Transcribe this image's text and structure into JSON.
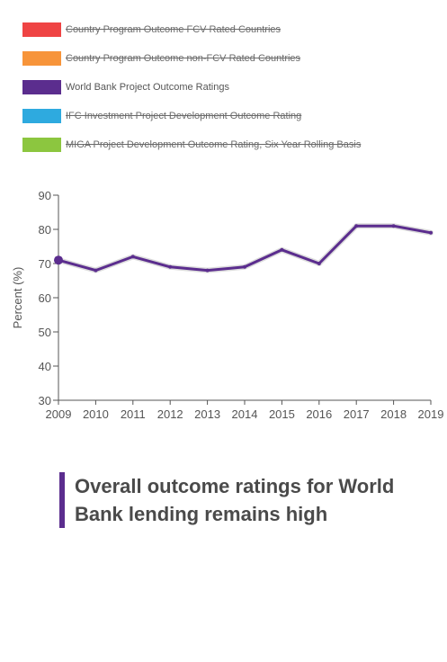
{
  "legend": {
    "items": [
      {
        "label": "Country Program Outcome FCV Rated Countries",
        "color": "#ef4444",
        "active": false
      },
      {
        "label": "Country Program Outcome non-FCV Rated Countries",
        "color": "#f7943a",
        "active": false
      },
      {
        "label": "World Bank Project Outcome Ratings",
        "color": "#5b2d8e",
        "active": true
      },
      {
        "label": "IFC Investment Project Development Outcome Rating",
        "color": "#2eaadf",
        "active": false
      },
      {
        "label": "MIGA Project Development Outcome Rating, Six Year Rolling Basis",
        "color": "#8cc63f",
        "active": false
      }
    ]
  },
  "chart_data": {
    "type": "line",
    "x": [
      2009,
      2010,
      2011,
      2012,
      2013,
      2014,
      2015,
      2016,
      2017,
      2018,
      2019
    ],
    "series": [
      {
        "name": "World Bank Project Outcome Ratings",
        "color": "#5b2d8e",
        "values": [
          71,
          68,
          72,
          69,
          68,
          69,
          74,
          70,
          81,
          81,
          79
        ]
      }
    ],
    "ylabel": "Percent (%)",
    "ylim": [
      30,
      90
    ],
    "yticks": [
      30,
      40,
      50,
      60,
      70,
      80,
      90
    ],
    "grid": false
  },
  "title": {
    "text": "Overall outcome ratings for World Bank lending remains high",
    "accent_color": "#5b2d8e"
  }
}
